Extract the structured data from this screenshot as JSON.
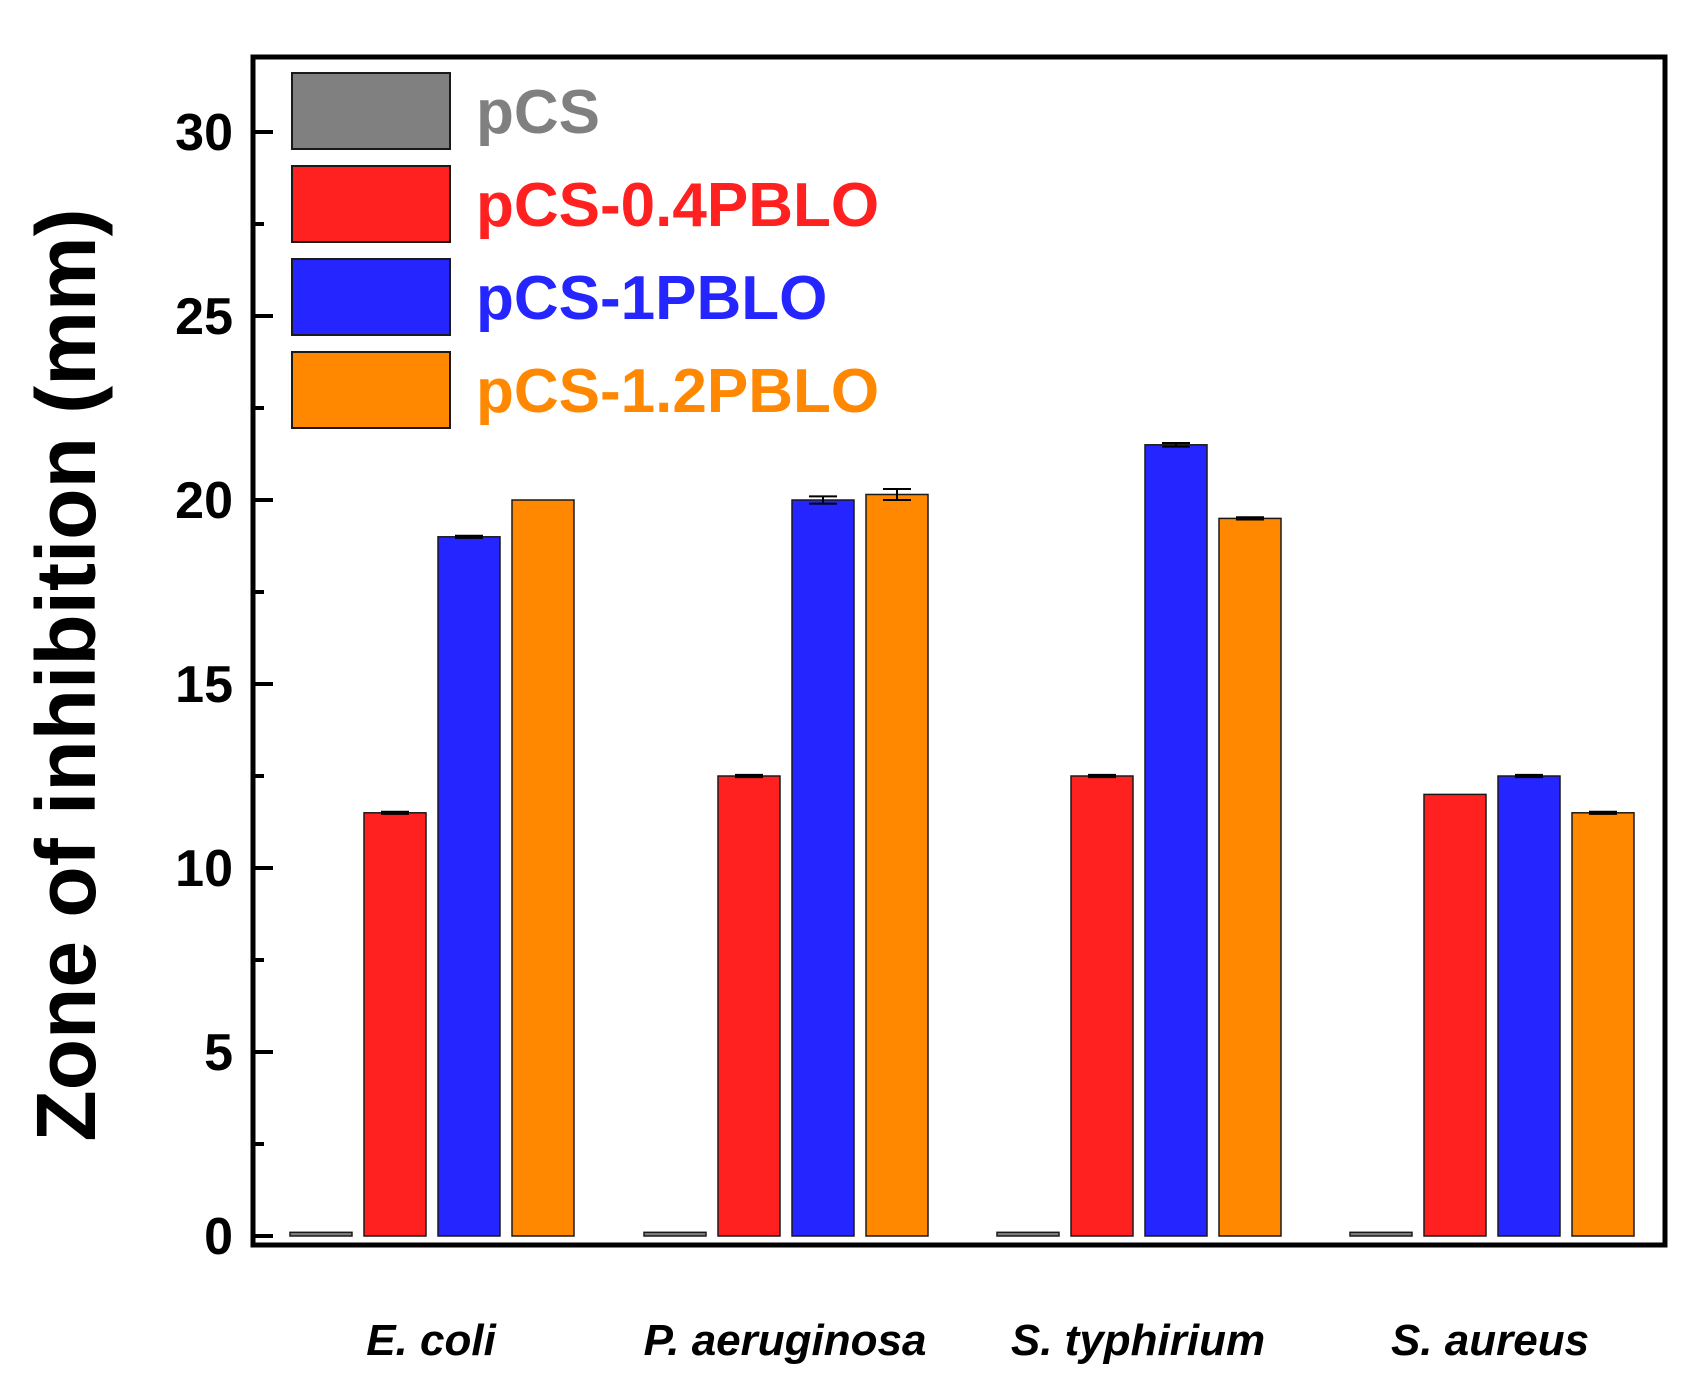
{
  "chart_data": {
    "type": "bar",
    "title": "",
    "xlabel": "",
    "ylabel": "Zone of inhibition (mm)",
    "ylim": [
      0,
      32
    ],
    "yticks": [
      0,
      5,
      10,
      15,
      20,
      25,
      30
    ],
    "ytick_labels": [
      "0",
      "5",
      "10",
      "15",
      "20",
      "25",
      "30"
    ],
    "grid": false,
    "legend_position": "top-left",
    "categories": [
      "E. coli",
      "P. aeruginosa",
      "S. typhirium",
      "S. aureus"
    ],
    "series": [
      {
        "name": "pCS",
        "color": "#808080",
        "values": [
          0.1,
          0.1,
          0.1,
          0.1
        ],
        "errors": [
          0,
          0,
          0,
          0
        ]
      },
      {
        "name": "pCS-0.4PBLO",
        "color": "#ff2020",
        "values": [
          11.5,
          12.5,
          12.5,
          12.0
        ],
        "errors": [
          0.03,
          0.03,
          0.03,
          0
        ]
      },
      {
        "name": "pCS-1PBLO",
        "color": "#2525ff",
        "values": [
          19.0,
          20.0,
          21.5,
          12.5
        ],
        "errors": [
          0.03,
          0.1,
          0.05,
          0.03
        ]
      },
      {
        "name": "pCS-1.2PBLO",
        "color": "#ff8800",
        "values": [
          20.0,
          20.15,
          19.5,
          11.5
        ],
        "errors": [
          0,
          0.15,
          0.03,
          0.03
        ]
      }
    ]
  }
}
